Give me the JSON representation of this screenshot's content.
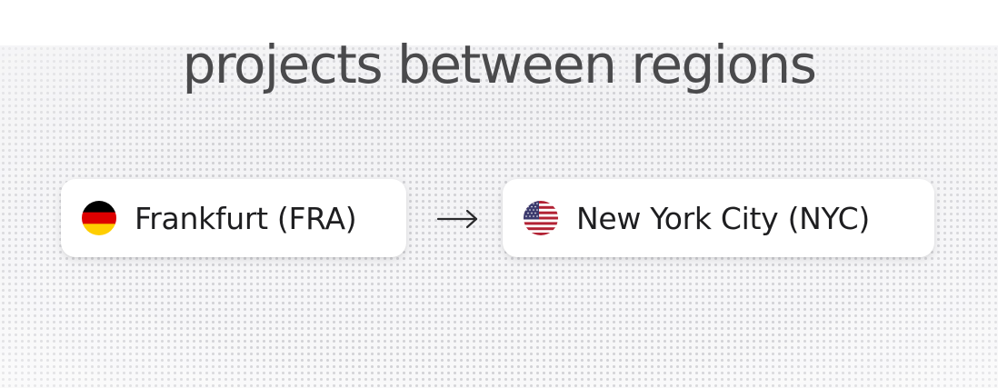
{
  "headline": "projects between regions",
  "route": {
    "from": {
      "label": "Frankfurt (FRA)",
      "flag_icon": "germany-flag-icon"
    },
    "arrow_icon": "right-arrow-icon",
    "to": {
      "label": "New York City (NYC)",
      "flag_icon": "usa-flag-icon"
    }
  },
  "colors": {
    "headline": "#4a4a4c",
    "chip_background": "#ffffff",
    "label": "#1e1e20",
    "map_background": "#f3f3f5"
  }
}
